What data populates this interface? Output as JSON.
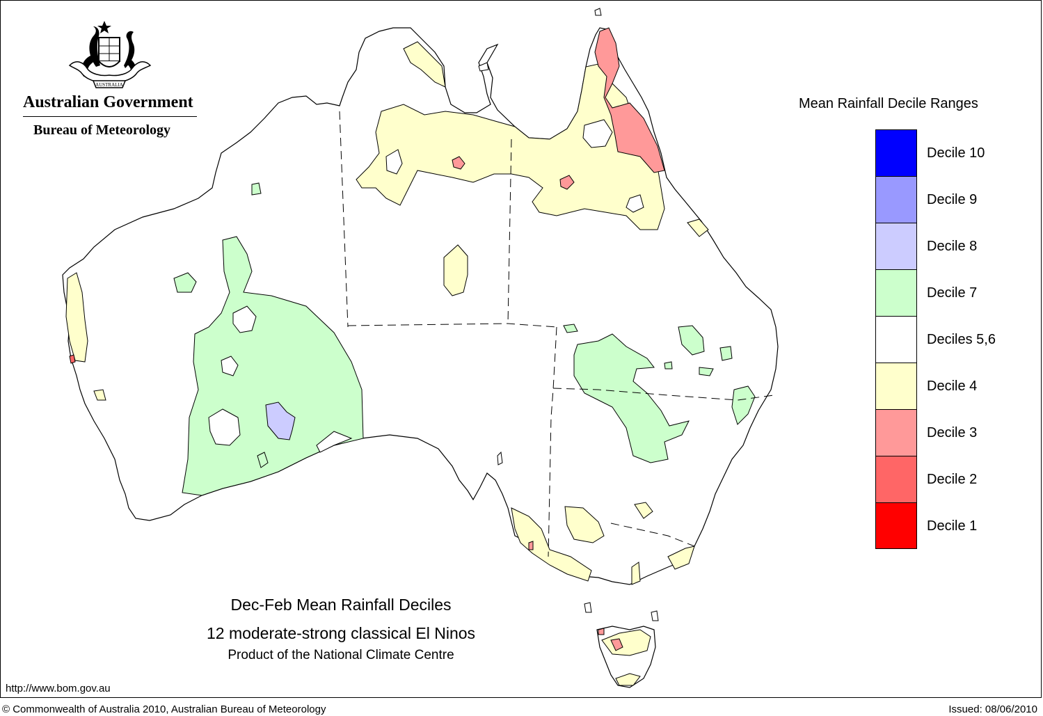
{
  "header": {
    "government": "Australian Government",
    "bureau": "Bureau of Meteorology",
    "coat_of_arms_motto": "AUSTRALIA"
  },
  "legend": {
    "title": "Mean Rainfall Decile Ranges",
    "items": [
      {
        "label": "Decile 10",
        "color": "#0000ff"
      },
      {
        "label": "Decile 9",
        "color": "#9999ff"
      },
      {
        "label": "Decile 8",
        "color": "#ccccff"
      },
      {
        "label": "Decile 7",
        "color": "#ccffcc"
      },
      {
        "label": "Deciles 5,6",
        "color": "#ffffff"
      },
      {
        "label": "Decile 4",
        "color": "#ffffcc"
      },
      {
        "label": "Decile 3",
        "color": "#ff9999"
      },
      {
        "label": "Decile 2",
        "color": "#ff6666"
      },
      {
        "label": "Decile 1",
        "color": "#ff0000"
      }
    ]
  },
  "caption": {
    "line1": "Dec-Feb Mean Rainfall Deciles",
    "line2": "12 moderate-strong classical El Ninos",
    "line3": "Product of the National Climate Centre"
  },
  "footer": {
    "url": "http://www.bom.gov.au",
    "copyright": "© Commonwealth of Australia 2010, Australian Bureau of Meteorology",
    "issued": "Issued: 08/06/2010"
  },
  "map_colors": {
    "coast": "#000000",
    "decile4": "#ffffcc",
    "decile7": "#ccffcc",
    "decile8": "#ccccff",
    "decile3": "#ff9999",
    "decile2": "#ff6666"
  }
}
